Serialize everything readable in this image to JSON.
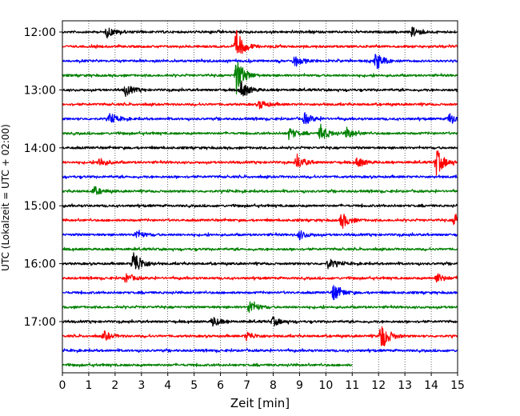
{
  "chart_data": {
    "type": "line",
    "title": "",
    "xlabel": "Zeit  [min]",
    "ylabel": "UTC (Lokalzeit = UTC + 02:00)",
    "xlim": [
      0,
      15
    ],
    "x_ticks": [
      0,
      1,
      2,
      3,
      4,
      5,
      6,
      7,
      8,
      9,
      10,
      11,
      12,
      13,
      14,
      15
    ],
    "y_tick_labels": [
      "12:00",
      "13:00",
      "14:00",
      "15:00",
      "16:00",
      "17:00"
    ],
    "row_interval_min": 15,
    "grid": "vertical dotted at each minute",
    "legend": "none",
    "series_colors": [
      "#000000",
      "#ff0000",
      "#0000ff",
      "#008000"
    ],
    "rows": [
      {
        "start": "12:00",
        "color": "#000000",
        "events": [
          {
            "t": 1.7,
            "amp": 0.35
          },
          {
            "t": 13.3,
            "amp": 0.35
          }
        ]
      },
      {
        "start": "12:15",
        "color": "#ff0000",
        "events": [
          {
            "t": 6.6,
            "amp": 1.1
          }
        ]
      },
      {
        "start": "12:30",
        "color": "#0000ff",
        "events": [
          {
            "t": 8.8,
            "amp": 0.35
          },
          {
            "t": 11.9,
            "amp": 0.6
          }
        ]
      },
      {
        "start": "12:45",
        "color": "#008000",
        "events": [
          {
            "t": 6.6,
            "amp": 1.3
          }
        ]
      },
      {
        "start": "13:00",
        "color": "#000000",
        "events": [
          {
            "t": 2.4,
            "amp": 0.4
          },
          {
            "t": 6.8,
            "amp": 0.6
          }
        ]
      },
      {
        "start": "13:15",
        "color": "#ff0000",
        "events": [
          {
            "t": 7.5,
            "amp": 0.3
          }
        ]
      },
      {
        "start": "13:30",
        "color": "#0000ff",
        "events": [
          {
            "t": 1.8,
            "amp": 0.35
          },
          {
            "t": 9.2,
            "amp": 0.4
          },
          {
            "t": 14.7,
            "amp": 0.4
          }
        ]
      },
      {
        "start": "13:45",
        "color": "#008000",
        "events": [
          {
            "t": 8.6,
            "amp": 0.4
          },
          {
            "t": 9.8,
            "amp": 0.6
          },
          {
            "t": 10.8,
            "amp": 0.4
          }
        ]
      },
      {
        "start": "14:00",
        "color": "#000000",
        "events": []
      },
      {
        "start": "14:15",
        "color": "#ff0000",
        "events": [
          {
            "t": 1.4,
            "amp": 0.35
          },
          {
            "t": 8.9,
            "amp": 0.5
          },
          {
            "t": 11.2,
            "amp": 0.35
          },
          {
            "t": 14.2,
            "amp": 0.9
          }
        ]
      },
      {
        "start": "14:30",
        "color": "#0000ff",
        "events": []
      },
      {
        "start": "14:45",
        "color": "#008000",
        "events": [
          {
            "t": 1.2,
            "amp": 0.3
          }
        ]
      },
      {
        "start": "15:00",
        "color": "#000000",
        "events": []
      },
      {
        "start": "15:15",
        "color": "#ff0000",
        "events": [
          {
            "t": 10.6,
            "amp": 0.55
          },
          {
            "t": 14.9,
            "amp": 0.5
          }
        ]
      },
      {
        "start": "15:30",
        "color": "#0000ff",
        "events": [
          {
            "t": 2.8,
            "amp": 0.3
          },
          {
            "t": 9.0,
            "amp": 0.3
          }
        ]
      },
      {
        "start": "15:45",
        "color": "#008000",
        "events": []
      },
      {
        "start": "16:00",
        "color": "#000000",
        "events": [
          {
            "t": 2.7,
            "amp": 1.0
          },
          {
            "t": 10.1,
            "amp": 0.35
          }
        ]
      },
      {
        "start": "16:15",
        "color": "#ff0000",
        "events": [
          {
            "t": 2.4,
            "amp": 0.3
          },
          {
            "t": 14.2,
            "amp": 0.35
          }
        ]
      },
      {
        "start": "16:30",
        "color": "#0000ff",
        "events": [
          {
            "t": 10.3,
            "amp": 0.6
          }
        ]
      },
      {
        "start": "16:45",
        "color": "#008000",
        "events": [
          {
            "t": 7.1,
            "amp": 0.5
          }
        ]
      },
      {
        "start": "17:00",
        "color": "#000000",
        "events": [
          {
            "t": 5.7,
            "amp": 0.35
          },
          {
            "t": 8.0,
            "amp": 0.3
          }
        ]
      },
      {
        "start": "17:15",
        "color": "#ff0000",
        "events": [
          {
            "t": 1.6,
            "amp": 0.3
          },
          {
            "t": 7.0,
            "amp": 0.3
          },
          {
            "t": 12.1,
            "amp": 1.0
          }
        ]
      },
      {
        "start": "17:30",
        "color": "#0000ff",
        "events": []
      },
      {
        "start": "17:45",
        "color": "#008000",
        "events": [],
        "end_min": 11.0
      }
    ]
  }
}
